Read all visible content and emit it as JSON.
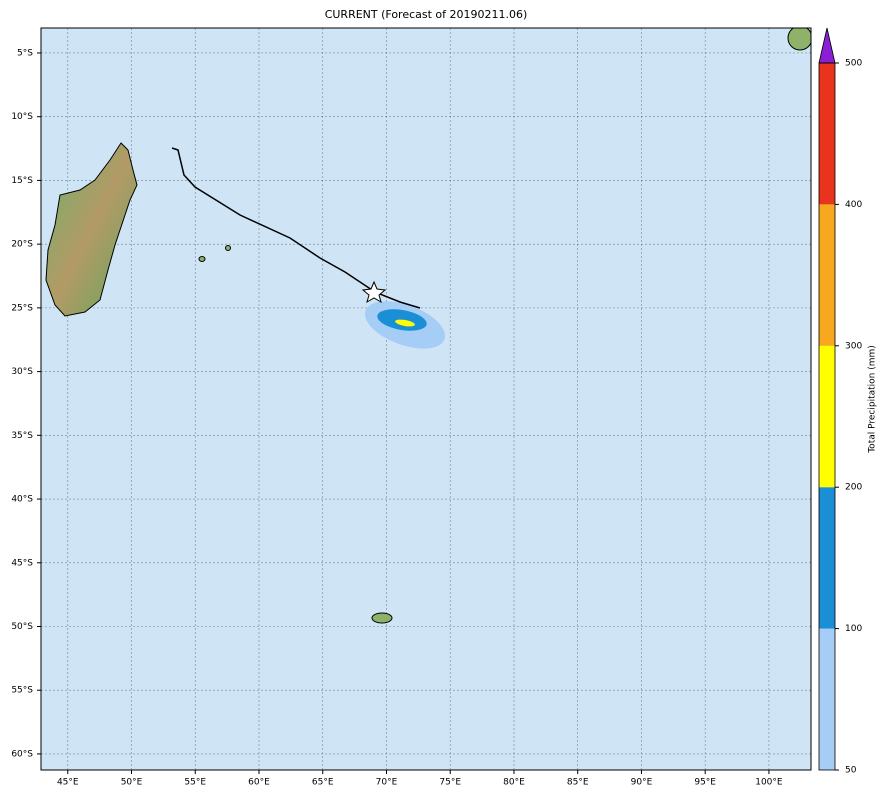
{
  "title": "CURRENT (Forecast of 20190211.06)",
  "map": {
    "xlim": [
      42.9,
      103.3
    ],
    "ylim": [
      -61.26,
      -3.04
    ],
    "xticks": [
      {
        "value": 45,
        "label": "45°E"
      },
      {
        "value": 50,
        "label": "50°E"
      },
      {
        "value": 55,
        "label": "55°E"
      },
      {
        "value": 60,
        "label": "60°E"
      },
      {
        "value": 65,
        "label": "65°E"
      },
      {
        "value": 70,
        "label": "70°E"
      },
      {
        "value": 75,
        "label": "75°E"
      },
      {
        "value": 80,
        "label": "80°E"
      },
      {
        "value": 85,
        "label": "85°E"
      },
      {
        "value": 90,
        "label": "90°E"
      },
      {
        "value": 95,
        "label": "95°E"
      },
      {
        "value": 100,
        "label": "100°E"
      }
    ],
    "yticks": [
      {
        "value": -5,
        "label": "5°S"
      },
      {
        "value": -10,
        "label": "10°S"
      },
      {
        "value": -15,
        "label": "15°S"
      },
      {
        "value": -20,
        "label": "20°S"
      },
      {
        "value": -25,
        "label": "25°S"
      },
      {
        "value": -30,
        "label": "30°S"
      },
      {
        "value": -35,
        "label": "35°S"
      },
      {
        "value": -40,
        "label": "40°S"
      },
      {
        "value": -45,
        "label": "45°S"
      },
      {
        "value": -50,
        "label": "50°S"
      },
      {
        "value": -55,
        "label": "55°S"
      },
      {
        "value": -60,
        "label": "60°S"
      }
    ],
    "grid": true
  },
  "colorbar": {
    "label": "Total Precipitation (mm)",
    "levels": [
      50,
      100,
      200,
      300,
      400,
      500
    ],
    "colors": [
      "#a6cdf5",
      "#1a8fd6",
      "#ffff00",
      "#f7a81c",
      "#e8341c"
    ],
    "extend_color": "#8a1fd6"
  }
}
